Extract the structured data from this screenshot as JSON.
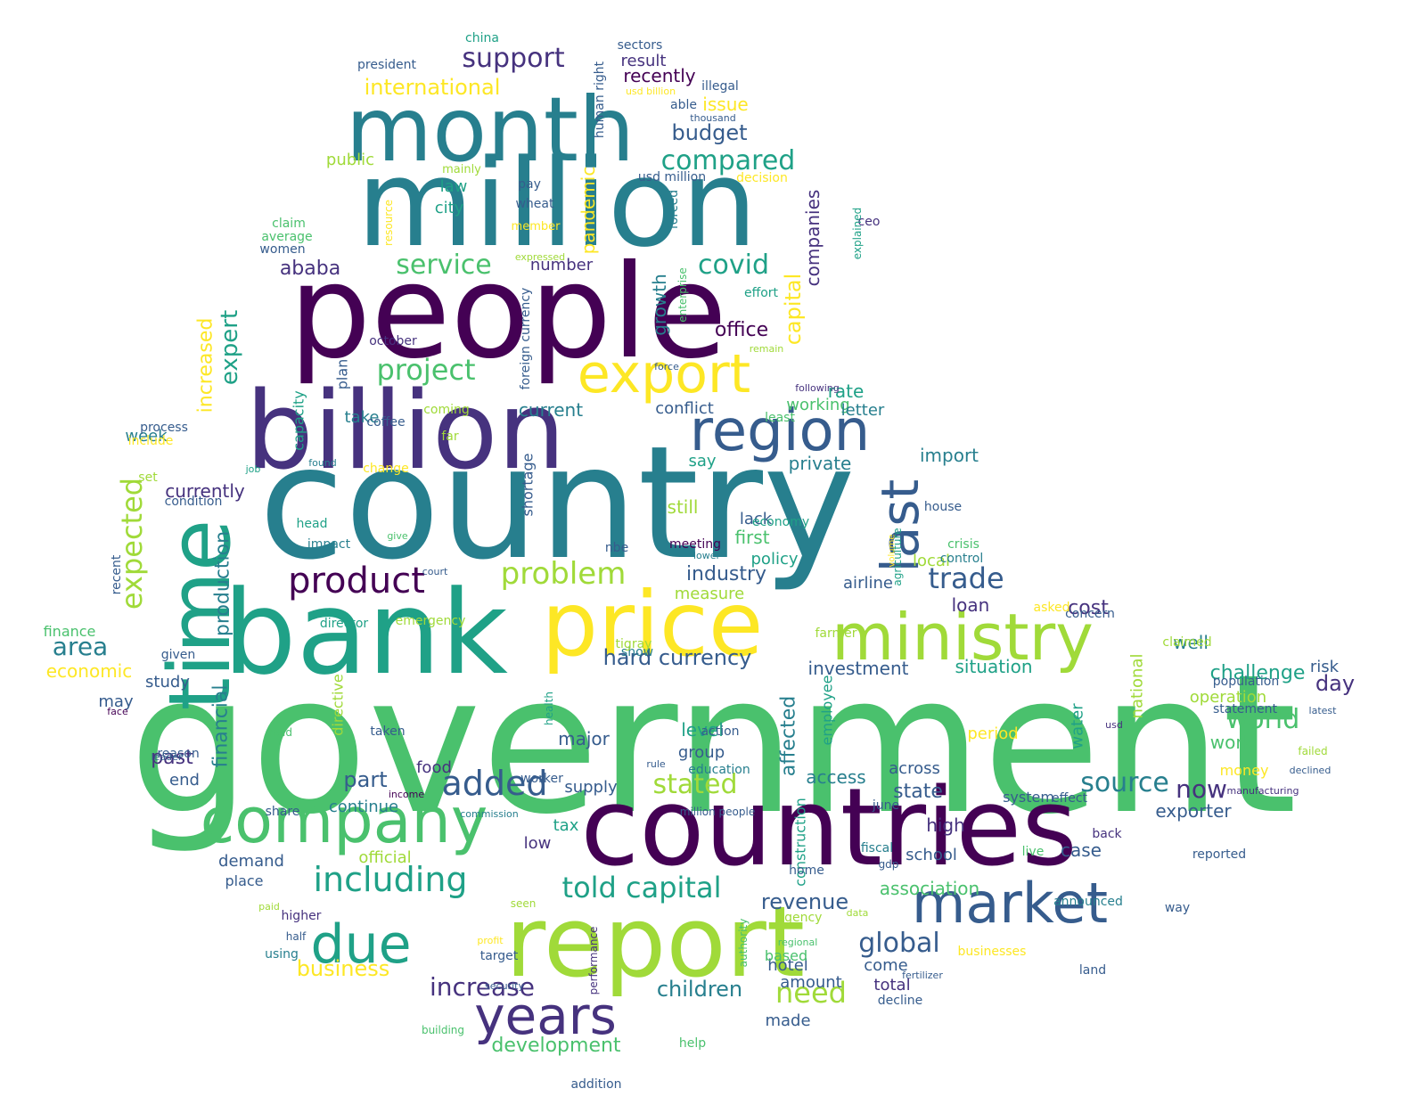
{
  "colors": [
    "#440154",
    "#46327e",
    "#365c8d",
    "#277f8e",
    "#1fa187",
    "#4ac16d",
    "#a0da39",
    "#fde725"
  ],
  "words": [
    {
      "t": "government",
      "c": 5
    },
    {
      "t": "country",
      "c": 3
    },
    {
      "t": "people",
      "c": 0
    },
    {
      "t": "million",
      "c": 3
    },
    {
      "t": "countries",
      "c": 0
    },
    {
      "t": "bank",
      "c": 4
    },
    {
      "t": "billion",
      "c": 1
    },
    {
      "t": "month",
      "c": 3
    },
    {
      "t": "report",
      "c": 6
    },
    {
      "t": "price",
      "c": 7
    },
    {
      "t": "time",
      "c": 4
    },
    {
      "t": "company",
      "c": 5
    },
    {
      "t": "ministry",
      "c": 6
    },
    {
      "t": "market",
      "c": 2
    },
    {
      "t": "region",
      "c": 2
    },
    {
      "t": "export",
      "c": 7
    },
    {
      "t": "last",
      "c": 2
    },
    {
      "t": "years",
      "c": 1
    },
    {
      "t": "due",
      "c": 4
    },
    {
      "t": "product",
      "c": 0
    },
    {
      "t": "added",
      "c": 2
    },
    {
      "t": "including",
      "c": 4
    },
    {
      "t": "problem",
      "c": 6
    },
    {
      "t": "expected",
      "c": 6
    },
    {
      "t": "told capital",
      "c": 4
    },
    {
      "t": "compared",
      "c": 4
    },
    {
      "t": "source",
      "c": 3
    },
    {
      "t": "project",
      "c": 5
    },
    {
      "t": "increase",
      "c": 1
    },
    {
      "t": "covid",
      "c": 4
    },
    {
      "t": "trade",
      "c": 2
    },
    {
      "t": "world",
      "c": 5
    },
    {
      "t": "support",
      "c": 1
    },
    {
      "t": "need",
      "c": 6
    },
    {
      "t": "global",
      "c": 2
    },
    {
      "t": "now",
      "c": 1
    },
    {
      "t": "stated",
      "c": 6
    },
    {
      "t": "service",
      "c": 5
    },
    {
      "t": "area",
      "c": 3
    },
    {
      "t": "children",
      "c": 3
    },
    {
      "t": "hard currency",
      "c": 2
    },
    {
      "t": "international",
      "c": 7
    },
    {
      "t": "budget",
      "c": 2
    },
    {
      "t": "industry",
      "c": 2
    },
    {
      "t": "production",
      "c": 3
    },
    {
      "t": "expert",
      "c": 4
    },
    {
      "t": "financial",
      "c": 3
    },
    {
      "t": "affected",
      "c": 3
    },
    {
      "t": "capital",
      "c": 7
    },
    {
      "t": "business",
      "c": 7
    },
    {
      "t": "development",
      "c": 5
    },
    {
      "t": "revenue",
      "c": 2
    },
    {
      "t": "day",
      "c": 1
    },
    {
      "t": "ababa",
      "c": 1
    },
    {
      "t": "association",
      "c": 5
    },
    {
      "t": "companies",
      "c": 1
    },
    {
      "t": "cost",
      "c": 1
    },
    {
      "t": "current",
      "c": 3
    },
    {
      "t": "increased",
      "c": 7
    },
    {
      "t": "currently",
      "c": 1
    },
    {
      "t": "office",
      "c": 0
    },
    {
      "t": "state",
      "c": 2
    },
    {
      "t": "part",
      "c": 2
    },
    {
      "t": "past",
      "c": 1
    },
    {
      "t": "economic",
      "c": 7
    },
    {
      "t": "investment",
      "c": 2
    },
    {
      "t": "situation",
      "c": 4
    },
    {
      "t": "challenge",
      "c": 4
    },
    {
      "t": "work",
      "c": 5
    },
    {
      "t": "growth",
      "c": 3
    },
    {
      "t": "recently",
      "c": 0
    },
    {
      "t": "pandemic",
      "c": 7
    },
    {
      "t": "well",
      "c": 3
    },
    {
      "t": "exporter",
      "c": 2
    },
    {
      "t": "total",
      "c": 1
    },
    {
      "t": "major",
      "c": 2
    },
    {
      "t": "rate",
      "c": 4
    },
    {
      "t": "import",
      "c": 3
    },
    {
      "t": "working",
      "c": 5
    },
    {
      "t": "high",
      "c": 1
    },
    {
      "t": "result",
      "c": 1
    },
    {
      "t": "issue",
      "c": 7
    },
    {
      "t": "conflict",
      "c": 2
    },
    {
      "t": "private",
      "c": 3
    },
    {
      "t": "still",
      "c": 6
    },
    {
      "t": "lack",
      "c": 2
    },
    {
      "t": "first",
      "c": 5
    },
    {
      "t": "policy",
      "c": 4
    },
    {
      "t": "local",
      "c": 6
    },
    {
      "t": "airline",
      "c": 2
    },
    {
      "t": "loan",
      "c": 1
    },
    {
      "t": "access",
      "c": 3
    },
    {
      "t": "across",
      "c": 2
    },
    {
      "t": "supply",
      "c": 2
    },
    {
      "t": "demand",
      "c": 2
    },
    {
      "t": "tax",
      "c": 4
    },
    {
      "t": "low",
      "c": 1
    },
    {
      "t": "case",
      "c": 2
    },
    {
      "t": "school",
      "c": 2
    },
    {
      "t": "come",
      "c": 2
    },
    {
      "t": "hotel",
      "c": 2
    },
    {
      "t": "amount",
      "c": 2
    },
    {
      "t": "made",
      "c": 2
    },
    {
      "t": "group",
      "c": 2
    },
    {
      "t": "level",
      "c": 4
    },
    {
      "t": "period",
      "c": 7
    },
    {
      "t": "operation",
      "c": 6
    },
    {
      "t": "water",
      "c": 4
    },
    {
      "t": "national",
      "c": 6
    },
    {
      "t": "employee",
      "c": 4
    },
    {
      "t": "construction",
      "c": 4
    },
    {
      "t": "money",
      "c": 7
    },
    {
      "t": "risk",
      "c": 2
    },
    {
      "t": "number",
      "c": 1
    },
    {
      "t": "city",
      "c": 4
    },
    {
      "t": "law",
      "c": 4
    },
    {
      "t": "public",
      "c": 6
    },
    {
      "t": "take",
      "c": 3
    },
    {
      "t": "plan",
      "c": 2
    },
    {
      "t": "capacity",
      "c": 4
    },
    {
      "t": "shortage",
      "c": 2
    },
    {
      "t": "week",
      "c": 3
    },
    {
      "t": "study",
      "c": 2
    },
    {
      "t": "may",
      "c": 2
    },
    {
      "t": "end",
      "c": 2
    },
    {
      "t": "continue",
      "c": 3
    },
    {
      "t": "place",
      "c": 2
    },
    {
      "t": "official",
      "c": 6
    },
    {
      "t": "food",
      "c": 1
    },
    {
      "t": "say",
      "c": 4
    },
    {
      "t": "measure",
      "c": 6
    },
    {
      "t": "letter",
      "c": 3
    },
    {
      "t": "finance",
      "c": 5
    },
    {
      "t": "directive",
      "c": 6
    },
    {
      "t": "higher",
      "c": 1
    },
    {
      "t": "using",
      "c": 3
    },
    {
      "t": "target",
      "c": 2
    },
    {
      "t": "performance",
      "c": 1
    },
    {
      "t": "authority",
      "c": 5
    },
    {
      "t": "based",
      "c": 5
    },
    {
      "t": "decline",
      "c": 2
    },
    {
      "t": "system",
      "c": 2
    },
    {
      "t": "fiscal",
      "c": 3
    },
    {
      "t": "gdp",
      "c": 2
    },
    {
      "t": "home",
      "c": 2
    },
    {
      "t": "land",
      "c": 2
    },
    {
      "t": "businesses",
      "c": 7
    },
    {
      "t": "announced",
      "c": 3
    },
    {
      "t": "way",
      "c": 2
    },
    {
      "t": "reported",
      "c": 2
    },
    {
      "t": "back",
      "c": 1
    },
    {
      "t": "live",
      "c": 5
    },
    {
      "t": "effect",
      "c": 2
    },
    {
      "t": "statement",
      "c": 2
    },
    {
      "t": "population",
      "c": 2
    },
    {
      "t": "claimed",
      "c": 6
    },
    {
      "t": "concern",
      "c": 2
    },
    {
      "t": "asked",
      "c": 7
    },
    {
      "t": "crisis",
      "c": 5
    },
    {
      "t": "control",
      "c": 3
    },
    {
      "t": "house",
      "c": 2
    },
    {
      "t": "agriculture",
      "c": 4
    },
    {
      "t": "economy",
      "c": 4
    },
    {
      "t": "meeting",
      "c": 0
    },
    {
      "t": "action",
      "c": 2
    },
    {
      "t": "education",
      "c": 3
    },
    {
      "t": "farmer",
      "c": 6
    },
    {
      "t": "show",
      "c": 3
    },
    {
      "t": "tigray",
      "c": 6
    },
    {
      "t": "nbe",
      "c": 2
    },
    {
      "t": "health",
      "c": 4
    },
    {
      "t": "worker",
      "c": 2
    },
    {
      "t": "share",
      "c": 2
    },
    {
      "t": "taken",
      "c": 2
    },
    {
      "t": "held",
      "c": 5
    },
    {
      "t": "reason",
      "c": 2
    },
    {
      "t": "given",
      "c": 2
    },
    {
      "t": "impact",
      "c": 3
    },
    {
      "t": "head",
      "c": 4
    },
    {
      "t": "director",
      "c": 4
    },
    {
      "t": "emergency",
      "c": 6
    },
    {
      "t": "condition",
      "c": 2
    },
    {
      "t": "process",
      "c": 2
    },
    {
      "t": "include",
      "c": 7
    },
    {
      "t": "set",
      "c": 6
    },
    {
      "t": "coffee",
      "c": 2
    },
    {
      "t": "coming",
      "c": 6
    },
    {
      "t": "change",
      "c": 7
    },
    {
      "t": "far",
      "c": 6
    },
    {
      "t": "october",
      "c": 1
    },
    {
      "t": "president",
      "c": 2
    },
    {
      "t": "china",
      "c": 4
    },
    {
      "t": "sectors",
      "c": 2
    },
    {
      "t": "human right",
      "c": 2
    },
    {
      "t": "illegal",
      "c": 2
    },
    {
      "t": "able",
      "c": 2
    },
    {
      "t": "thousand",
      "c": 2
    },
    {
      "t": "usd billion",
      "c": 7
    },
    {
      "t": "usd million",
      "c": 2
    },
    {
      "t": "decision",
      "c": 7
    },
    {
      "t": "mainly",
      "c": 6
    },
    {
      "t": "pay",
      "c": 2
    },
    {
      "t": "wheat",
      "c": 2
    },
    {
      "t": "member",
      "c": 7
    },
    {
      "t": "resource",
      "c": 7
    },
    {
      "t": "claim",
      "c": 5
    },
    {
      "t": "average",
      "c": 5
    },
    {
      "t": "women",
      "c": 2
    },
    {
      "t": "forced",
      "c": 3
    },
    {
      "t": "ceo",
      "c": 1
    },
    {
      "t": "explained",
      "c": 4
    },
    {
      "t": "expressed",
      "c": 6
    },
    {
      "t": "effort",
      "c": 4
    },
    {
      "t": "enterprise",
      "c": 5
    },
    {
      "t": "remain",
      "c": 6
    },
    {
      "t": "force",
      "c": 2
    },
    {
      "t": "following",
      "c": 1
    },
    {
      "t": "foreign currency",
      "c": 2
    },
    {
      "t": "least",
      "c": 5
    },
    {
      "t": "found",
      "c": 3
    },
    {
      "t": "job",
      "c": 4
    },
    {
      "t": "give",
      "c": 5
    },
    {
      "t": "court",
      "c": 2
    },
    {
      "t": "lower",
      "c": 3
    },
    {
      "t": "volume",
      "c": 7
    },
    {
      "t": "recent",
      "c": 2
    },
    {
      "t": "face",
      "c": 0
    },
    {
      "t": "leader",
      "c": 2
    },
    {
      "t": "income",
      "c": 0
    },
    {
      "t": "commission",
      "c": 3
    },
    {
      "t": "rule",
      "c": 2
    },
    {
      "t": "million people",
      "c": 2
    },
    {
      "t": "june",
      "c": 2
    },
    {
      "t": "paid",
      "c": 6
    },
    {
      "t": "seen",
      "c": 6
    },
    {
      "t": "half",
      "c": 2
    },
    {
      "t": "profit",
      "c": 7
    },
    {
      "t": "security",
      "c": 2
    },
    {
      "t": "building",
      "c": 5
    },
    {
      "t": "help",
      "c": 5
    },
    {
      "t": "addition",
      "c": 2
    },
    {
      "t": "agency",
      "c": 6
    },
    {
      "t": "data",
      "c": 6
    },
    {
      "t": "regional",
      "c": 5
    },
    {
      "t": "fertilizer",
      "c": 2
    },
    {
      "t": "usd",
      "c": 1
    },
    {
      "t": "latest",
      "c": 2
    },
    {
      "t": "failed",
      "c": 6
    },
    {
      "t": "declined",
      "c": 2
    },
    {
      "t": "manufacturing",
      "c": 1
    }
  ]
}
